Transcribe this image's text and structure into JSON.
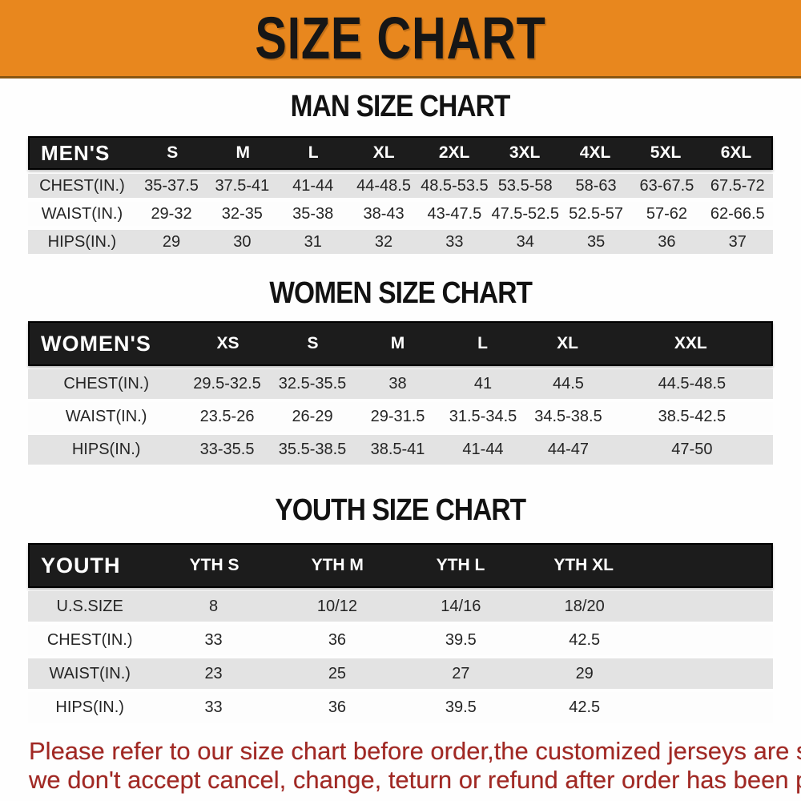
{
  "banner": {
    "title": "SIZE CHART",
    "bg_color": "#E8871E"
  },
  "colors": {
    "header_bar": "#1c1c1c",
    "row_stripe": "#e3e3e3",
    "footer_text": "#a12823"
  },
  "sections": [
    {
      "heading": "MAN SIZE CHART",
      "table": {
        "label": "MEN'S",
        "sizes": [
          "S",
          "M",
          "L",
          "XL",
          "2XL",
          "3XL",
          "4XL",
          "5XL",
          "6XL"
        ],
        "rows": [
          {
            "label": "CHEST(IN.)",
            "values": [
              "35-37.5",
              "37.5-41",
              "41-44",
              "44-48.5",
              "48.5-53.5",
              "53.5-58",
              "58-63",
              "63-67.5",
              "67.5-72"
            ]
          },
          {
            "label": "WAIST(IN.)",
            "values": [
              "29-32",
              "32-35",
              "35-38",
              "38-43",
              "43-47.5",
              "47.5-52.5",
              "52.5-57",
              "57-62",
              "62-66.5"
            ]
          },
          {
            "label": "HIPS(IN.)",
            "values": [
              "29",
              "30",
              "31",
              "32",
              "33",
              "34",
              "35",
              "36",
              "37"
            ]
          }
        ]
      }
    },
    {
      "heading": "WOMEN SIZE CHART",
      "table": {
        "label": "WOMEN'S",
        "sizes": [
          "XS",
          "S",
          "M",
          "L",
          "XL",
          "XXL"
        ],
        "rows": [
          {
            "label": "CHEST(IN.)",
            "values": [
              "29.5-32.5",
              "32.5-35.5",
              "38",
              "41",
              "44.5",
              "44.5-48.5"
            ]
          },
          {
            "label": "WAIST(IN.)",
            "values": [
              "23.5-26",
              "26-29",
              "29-31.5",
              "31.5-34.5",
              "34.5-38.5",
              "38.5-42.5"
            ]
          },
          {
            "label": "HIPS(IN.)",
            "values": [
              "33-35.5",
              "35.5-38.5",
              "38.5-41",
              "41-44",
              "44-47",
              "47-50"
            ]
          }
        ]
      }
    },
    {
      "heading": "YOUTH SIZE CHART",
      "table": {
        "label": "YOUTH",
        "sizes": [
          "YTH S",
          "YTH M",
          "YTH L",
          "YTH XL"
        ],
        "rows": [
          {
            "label": "U.S.SIZE",
            "values": [
              "8",
              "10/12",
              "14/16",
              "18/20"
            ]
          },
          {
            "label": "CHEST(IN.)",
            "values": [
              "33",
              "36",
              "39.5",
              "42.5"
            ]
          },
          {
            "label": "WAIST(IN.)",
            "values": [
              "23",
              "25",
              "27",
              "29"
            ]
          },
          {
            "label": "HIPS(IN.)",
            "values": [
              "33",
              "36",
              "39.5",
              "42.5"
            ]
          }
        ]
      }
    }
  ],
  "footer": {
    "line1": "Please refer to our size chart before order,the customized jerseys are special products,",
    "line2": "we don't accept cancel, change, teturn or refund after order has been placed!"
  }
}
